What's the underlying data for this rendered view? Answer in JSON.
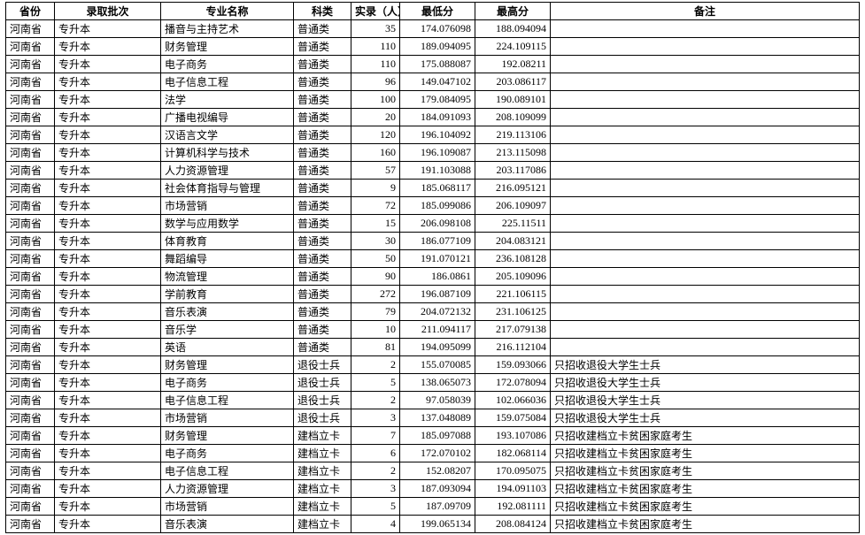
{
  "columns": [
    {
      "key": "province",
      "label": "省份",
      "align": "txt"
    },
    {
      "key": "batch",
      "label": "录取批次",
      "align": "txt"
    },
    {
      "key": "major",
      "label": "专业名称",
      "align": "txt"
    },
    {
      "key": "category",
      "label": "科类",
      "align": "txt"
    },
    {
      "key": "enroll",
      "label": "实录（人）",
      "align": "num"
    },
    {
      "key": "min",
      "label": "最低分",
      "align": "num"
    },
    {
      "key": "max",
      "label": "最高分",
      "align": "num"
    },
    {
      "key": "remark",
      "label": "备注",
      "align": "txt"
    }
  ],
  "rows": [
    {
      "province": "河南省",
      "batch": "专升本",
      "major": "播音与主持艺术",
      "category": "普通类",
      "enroll": "35",
      "min": "174.076098",
      "max": "188.094094",
      "remark": ""
    },
    {
      "province": "河南省",
      "batch": "专升本",
      "major": "财务管理",
      "category": "普通类",
      "enroll": "110",
      "min": "189.094095",
      "max": "224.109115",
      "remark": ""
    },
    {
      "province": "河南省",
      "batch": "专升本",
      "major": "电子商务",
      "category": "普通类",
      "enroll": "110",
      "min": "175.088087",
      "max": "192.08211",
      "remark": ""
    },
    {
      "province": "河南省",
      "batch": "专升本",
      "major": "电子信息工程",
      "category": "普通类",
      "enroll": "96",
      "min": "149.047102",
      "max": "203.086117",
      "remark": ""
    },
    {
      "province": "河南省",
      "batch": "专升本",
      "major": "法学",
      "category": "普通类",
      "enroll": "100",
      "min": "179.084095",
      "max": "190.089101",
      "remark": ""
    },
    {
      "province": "河南省",
      "batch": "专升本",
      "major": "广播电视编导",
      "category": "普通类",
      "enroll": "20",
      "min": "184.091093",
      "max": "208.109099",
      "remark": ""
    },
    {
      "province": "河南省",
      "batch": "专升本",
      "major": "汉语言文学",
      "category": "普通类",
      "enroll": "120",
      "min": "196.104092",
      "max": "219.113106",
      "remark": ""
    },
    {
      "province": "河南省",
      "batch": "专升本",
      "major": "计算机科学与技术",
      "category": "普通类",
      "enroll": "160",
      "min": "196.109087",
      "max": "213.115098",
      "remark": ""
    },
    {
      "province": "河南省",
      "batch": "专升本",
      "major": "人力资源管理",
      "category": "普通类",
      "enroll": "57",
      "min": "191.103088",
      "max": "203.117086",
      "remark": ""
    },
    {
      "province": "河南省",
      "batch": "专升本",
      "major": "社会体育指导与管理",
      "category": "普通类",
      "enroll": "9",
      "min": "185.068117",
      "max": "216.095121",
      "remark": ""
    },
    {
      "province": "河南省",
      "batch": "专升本",
      "major": "市场营销",
      "category": "普通类",
      "enroll": "72",
      "min": "185.099086",
      "max": "206.109097",
      "remark": ""
    },
    {
      "province": "河南省",
      "batch": "专升本",
      "major": "数学与应用数学",
      "category": "普通类",
      "enroll": "15",
      "min": "206.098108",
      "max": "225.11511",
      "remark": ""
    },
    {
      "province": "河南省",
      "batch": "专升本",
      "major": "体育教育",
      "category": "普通类",
      "enroll": "30",
      "min": "186.077109",
      "max": "204.083121",
      "remark": ""
    },
    {
      "province": "河南省",
      "batch": "专升本",
      "major": "舞蹈编导",
      "category": "普通类",
      "enroll": "50",
      "min": "191.070121",
      "max": "236.108128",
      "remark": ""
    },
    {
      "province": "河南省",
      "batch": "专升本",
      "major": "物流管理",
      "category": "普通类",
      "enroll": "90",
      "min": "186.0861",
      "max": "205.109096",
      "remark": ""
    },
    {
      "province": "河南省",
      "batch": "专升本",
      "major": "学前教育",
      "category": "普通类",
      "enroll": "272",
      "min": "196.087109",
      "max": "221.106115",
      "remark": ""
    },
    {
      "province": "河南省",
      "batch": "专升本",
      "major": "音乐表演",
      "category": "普通类",
      "enroll": "79",
      "min": "204.072132",
      "max": "231.106125",
      "remark": ""
    },
    {
      "province": "河南省",
      "batch": "专升本",
      "major": "音乐学",
      "category": "普通类",
      "enroll": "10",
      "min": "211.094117",
      "max": "217.079138",
      "remark": ""
    },
    {
      "province": "河南省",
      "batch": "专升本",
      "major": "英语",
      "category": "普通类",
      "enroll": "81",
      "min": "194.095099",
      "max": "216.112104",
      "remark": ""
    },
    {
      "province": "河南省",
      "batch": "专升本",
      "major": "财务管理",
      "category": "退役士兵",
      "enroll": "2",
      "min": "155.070085",
      "max": "159.093066",
      "remark": "只招收退役大学生士兵"
    },
    {
      "province": "河南省",
      "batch": "专升本",
      "major": "电子商务",
      "category": "退役士兵",
      "enroll": "5",
      "min": "138.065073",
      "max": "172.078094",
      "remark": "只招收退役大学生士兵"
    },
    {
      "province": "河南省",
      "batch": "专升本",
      "major": "电子信息工程",
      "category": "退役士兵",
      "enroll": "2",
      "min": "97.058039",
      "max": "102.066036",
      "remark": "只招收退役大学生士兵"
    },
    {
      "province": "河南省",
      "batch": "专升本",
      "major": "市场营销",
      "category": "退役士兵",
      "enroll": "3",
      "min": "137.048089",
      "max": "159.075084",
      "remark": "只招收退役大学生士兵"
    },
    {
      "province": "河南省",
      "batch": "专升本",
      "major": "财务管理",
      "category": "建档立卡",
      "enroll": "7",
      "min": "185.097088",
      "max": "193.107086",
      "remark": "只招收建档立卡贫困家庭考生"
    },
    {
      "province": "河南省",
      "batch": "专升本",
      "major": "电子商务",
      "category": "建档立卡",
      "enroll": "6",
      "min": "172.070102",
      "max": "182.068114",
      "remark": "只招收建档立卡贫困家庭考生"
    },
    {
      "province": "河南省",
      "batch": "专升本",
      "major": "电子信息工程",
      "category": "建档立卡",
      "enroll": "2",
      "min": "152.08207",
      "max": "170.095075",
      "remark": "只招收建档立卡贫困家庭考生"
    },
    {
      "province": "河南省",
      "batch": "专升本",
      "major": "人力资源管理",
      "category": "建档立卡",
      "enroll": "3",
      "min": "187.093094",
      "max": "194.091103",
      "remark": "只招收建档立卡贫困家庭考生"
    },
    {
      "province": "河南省",
      "batch": "专升本",
      "major": "市场营销",
      "category": "建档立卡",
      "enroll": "5",
      "min": "187.09709",
      "max": "192.081111",
      "remark": "只招收建档立卡贫困家庭考生"
    },
    {
      "province": "河南省",
      "batch": "专升本",
      "major": "音乐表演",
      "category": "建档立卡",
      "enroll": "4",
      "min": "199.065134",
      "max": "208.084124",
      "remark": "只招收建档立卡贫困家庭考生"
    }
  ]
}
